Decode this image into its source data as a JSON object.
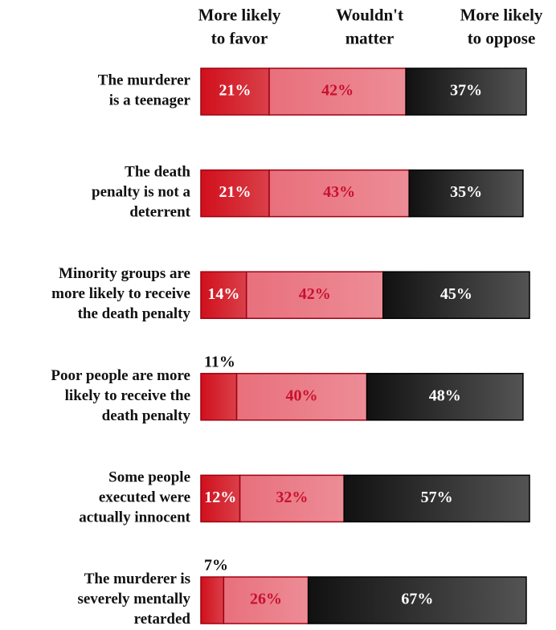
{
  "chart_data": {
    "type": "stacked_bar_horizontal",
    "categories": [
      "The murderer\nis a teenager",
      "The death\npenalty is not a\ndeterrent",
      "Minority groups are\nmore likely to receive\nthe death penalty",
      "Poor people are more\nlikely to receive the\ndeath penalty",
      "Some people\nexecuted were\nactually innocent",
      "The murderer is\nseverely mentally\nretarded"
    ],
    "series": [
      {
        "name": "More likely\nto favor",
        "color": "#d0101c",
        "label_color": "#ffffff",
        "values": [
          21,
          21,
          14,
          11,
          12,
          7
        ],
        "value_labels": [
          "21%",
          "21%",
          "14%",
          "11%",
          "12%",
          "7%"
        ]
      },
      {
        "name": "Wouldn't\nmatter",
        "color": "#e8707c",
        "label_color": "#c8102e",
        "values": [
          42,
          43,
          42,
          40,
          32,
          26
        ],
        "value_labels": [
          "42%",
          "43%",
          "42%",
          "40%",
          "32%",
          "26%"
        ]
      },
      {
        "name": "More likely\nto oppose",
        "color": "#111111",
        "label_color": "#ffffff",
        "values": [
          37,
          35,
          45,
          48,
          57,
          67
        ],
        "value_labels": [
          "37%",
          "35%",
          "45%",
          "48%",
          "57%",
          "67%"
        ]
      }
    ],
    "xlim": [
      0,
      100
    ]
  }
}
